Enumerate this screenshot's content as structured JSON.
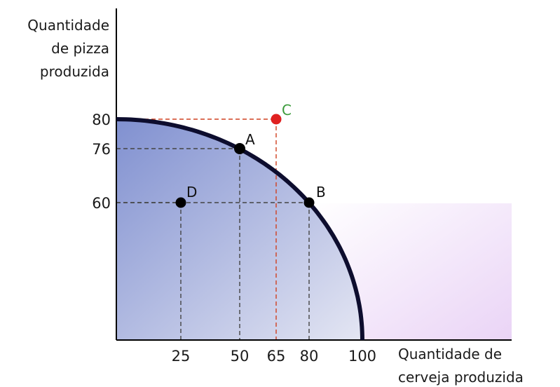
{
  "chart_data": {
    "type": "line",
    "ylabel": [
      "Quantidade",
      "de pizza",
      "produzida"
    ],
    "xlabel": [
      "Quantidade de",
      "cerveja produzida"
    ],
    "xlim": [
      0,
      100
    ],
    "ylim": [
      0,
      80
    ],
    "x_ticks": [
      "25",
      "50",
      "65",
      "80",
      "100"
    ],
    "y_ticks": [
      "60",
      "76",
      "80"
    ],
    "frontier": {
      "x": [
        0,
        10,
        20,
        30,
        40,
        50,
        60,
        70,
        80,
        85,
        90,
        95,
        98,
        100
      ],
      "y": [
        80,
        79.6,
        78.4,
        76.3,
        73.3,
        76,
        64,
        57.1,
        60,
        42.1,
        34.9,
        25,
        15.9,
        0
      ]
    },
    "points": [
      {
        "label": "A",
        "x": 50,
        "y": 76,
        "color": "#000000"
      },
      {
        "label": "B",
        "x": 80,
        "y": 60,
        "color": "#000000"
      },
      {
        "label": "C",
        "x": 65,
        "y": 80,
        "color": "#e02020"
      },
      {
        "label": "D",
        "x": 25,
        "y": 60,
        "color": "#000000"
      }
    ],
    "colors": {
      "frontier": "#0d0d2e",
      "fill_start": "#8090d0",
      "fill_end": "#dde0f0",
      "pink_start": "#ffffff",
      "pink_end": "#ecd8f7",
      "black_guides": "#444444",
      "red_guides": "#d04020",
      "label_c": "#3a9a3a"
    }
  }
}
